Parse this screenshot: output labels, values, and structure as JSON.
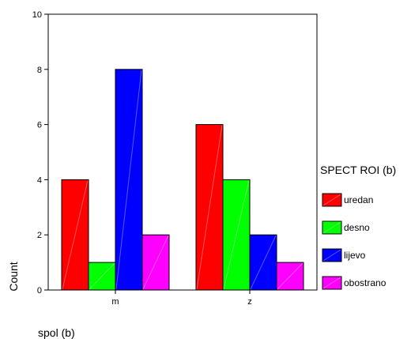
{
  "chart_data": {
    "type": "bar",
    "categories": [
      "m",
      "z"
    ],
    "series": [
      {
        "name": "uredan",
        "values": [
          4,
          6
        ],
        "color": "#ff0000"
      },
      {
        "name": "desno",
        "values": [
          1,
          4
        ],
        "color": "#00ff00"
      },
      {
        "name": "lijevo",
        "values": [
          8,
          2
        ],
        "color": "#0000ff"
      },
      {
        "name": "obostrano",
        "values": [
          2,
          1
        ],
        "color": "#ff00ff"
      }
    ],
    "xlabel": "spol (b)",
    "ylabel": "Count",
    "ylim": [
      0,
      10
    ],
    "yticks": [
      "0",
      "2",
      "4",
      "6",
      "8",
      "10"
    ],
    "legend_title": "SPECT ROI (b)",
    "legend_position": "right",
    "grid": false
  }
}
